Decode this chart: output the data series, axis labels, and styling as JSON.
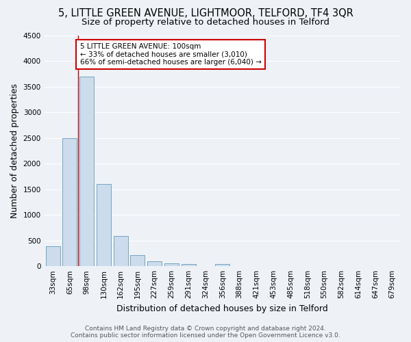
{
  "title": "5, LITTLE GREEN AVENUE, LIGHTMOOR, TELFORD, TF4 3QR",
  "subtitle": "Size of property relative to detached houses in Telford",
  "xlabel": "Distribution of detached houses by size in Telford",
  "ylabel": "Number of detached properties",
  "bin_labels": [
    "33sqm",
    "65sqm",
    "98sqm",
    "130sqm",
    "162sqm",
    "195sqm",
    "227sqm",
    "259sqm",
    "291sqm",
    "324sqm",
    "356sqm",
    "388sqm",
    "421sqm",
    "453sqm",
    "485sqm",
    "518sqm",
    "550sqm",
    "582sqm",
    "614sqm",
    "647sqm",
    "679sqm"
  ],
  "bar_values": [
    390,
    2500,
    3700,
    1600,
    590,
    220,
    100,
    55,
    40,
    0,
    40,
    0,
    0,
    0,
    0,
    0,
    0,
    0,
    0,
    0,
    0
  ],
  "bar_color": "#ccdcec",
  "bar_edge_color": "#6699bb",
  "annotation_line0": "5 LITTLE GREEN AVENUE: 100sqm",
  "annotation_line1": "← 33% of detached houses are smaller (3,010)",
  "annotation_line2": "66% of semi-detached houses are larger (6,040) →",
  "annotation_box_facecolor": "#ffffff",
  "annotation_box_edgecolor": "#cc0000",
  "vline_color": "#cc0000",
  "ylim": [
    0,
    4500
  ],
  "yticks": [
    0,
    500,
    1000,
    1500,
    2000,
    2500,
    3000,
    3500,
    4000,
    4500
  ],
  "bg_color": "#eef2f7",
  "plot_bg_color": "#eef2f7",
  "grid_color": "#ffffff",
  "title_fontsize": 10.5,
  "subtitle_fontsize": 9.5,
  "axis_label_fontsize": 9,
  "tick_fontsize": 7.5,
  "footer_fontsize": 6.5,
  "footer_line1": "Contains HM Land Registry data © Crown copyright and database right 2024.",
  "footer_line2": "Contains public sector information licensed under the Open Government Licence v3.0."
}
